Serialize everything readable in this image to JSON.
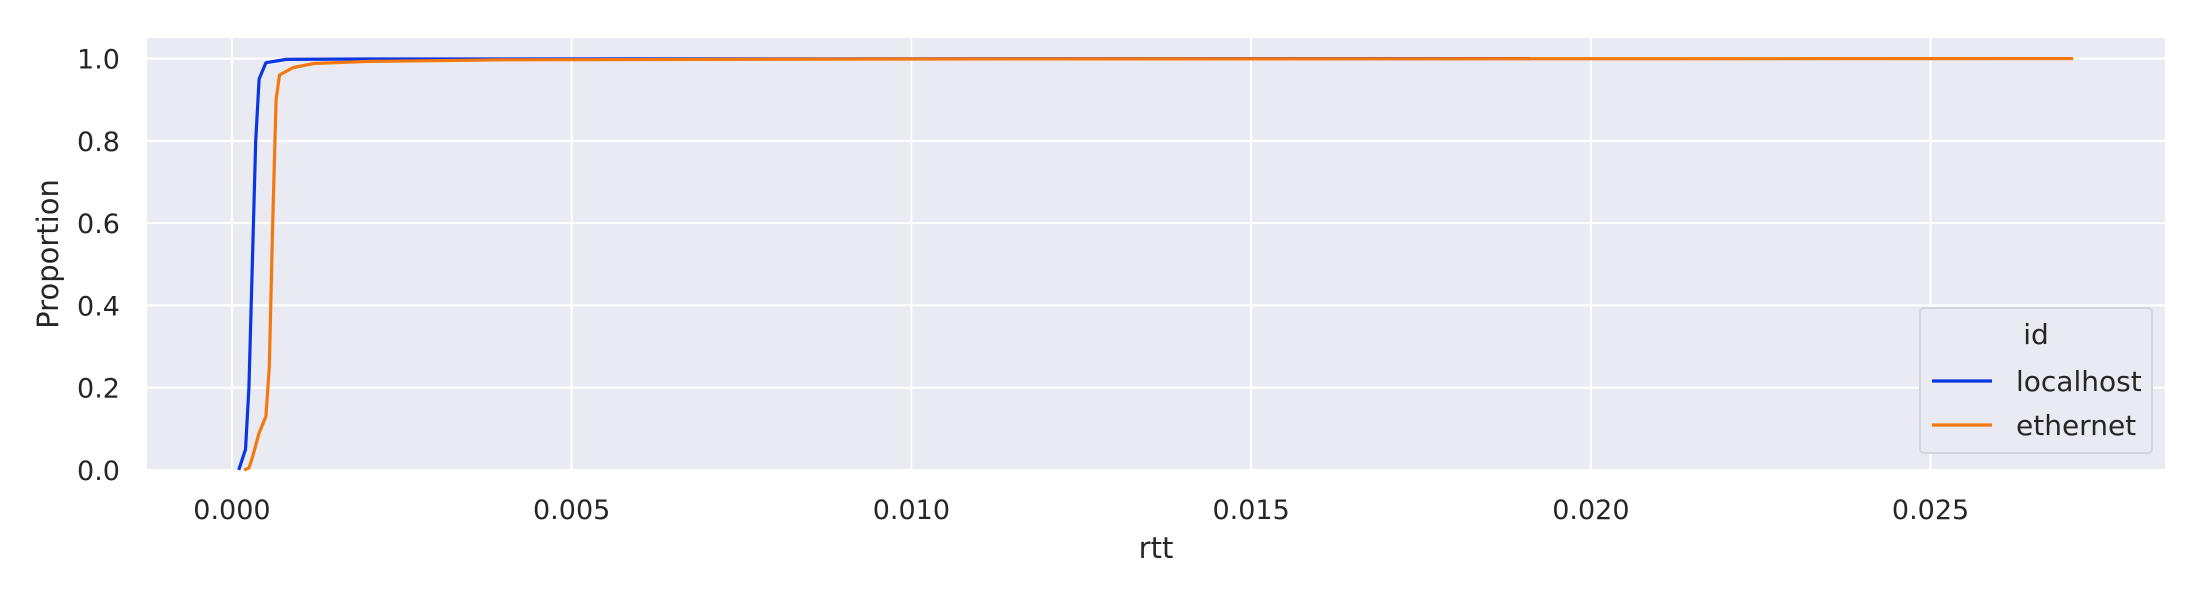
{
  "chart_data": {
    "type": "line",
    "title": "",
    "xlabel": "rtt",
    "ylabel": "Proportion",
    "xlim": [
      -0.00125,
      0.02845
    ],
    "ylim": [
      0.0,
      1.05
    ],
    "xticks": [
      0.0,
      0.005,
      0.01,
      0.015,
      0.02,
      0.025
    ],
    "xtick_labels": [
      "0.000",
      "0.005",
      "0.010",
      "0.015",
      "0.020",
      "0.025"
    ],
    "yticks": [
      0.0,
      0.2,
      0.4,
      0.6,
      0.8,
      1.0
    ],
    "ytick_labels": [
      "0.0",
      "0.2",
      "0.4",
      "0.6",
      "0.8",
      "1.0"
    ],
    "grid": true,
    "legend": {
      "title": "id",
      "position": "lower-right"
    },
    "series": [
      {
        "name": "localhost",
        "color": "#0b36e6",
        "points": [
          [
            0.0001,
            0.0
          ],
          [
            0.0002,
            0.05
          ],
          [
            0.00025,
            0.2
          ],
          [
            0.0003,
            0.5
          ],
          [
            0.00035,
            0.8
          ],
          [
            0.0004,
            0.95
          ],
          [
            0.0005,
            0.99
          ],
          [
            0.0008,
            0.998
          ],
          [
            0.002,
            0.999
          ],
          [
            0.0191,
            1.0
          ]
        ]
      },
      {
        "name": "ethernet",
        "color": "#f5780f",
        "points": [
          [
            0.00018,
            0.0
          ],
          [
            0.00025,
            0.005
          ],
          [
            0.0003,
            0.03
          ],
          [
            0.0004,
            0.09
          ],
          [
            0.00045,
            0.11
          ],
          [
            0.0005,
            0.13
          ],
          [
            0.00055,
            0.25
          ],
          [
            0.0006,
            0.6
          ],
          [
            0.00065,
            0.9
          ],
          [
            0.0007,
            0.96
          ],
          [
            0.0009,
            0.978
          ],
          [
            0.0012,
            0.988
          ],
          [
            0.002,
            0.993
          ],
          [
            0.004,
            0.997
          ],
          [
            0.01,
            0.999
          ],
          [
            0.0271,
            1.0
          ]
        ]
      }
    ]
  }
}
